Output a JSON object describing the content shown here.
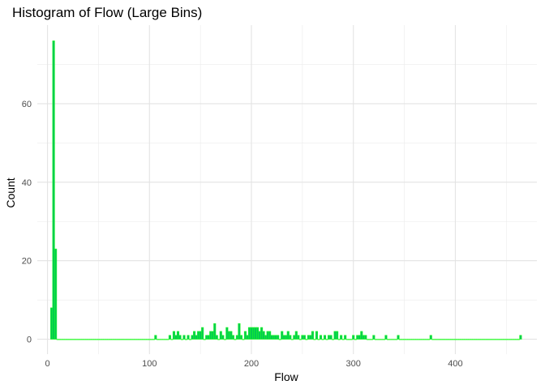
{
  "chart_data": {
    "type": "bar",
    "title": "Histogram of Flow (Large Bins)",
    "xlabel": "Flow",
    "ylabel": "Count",
    "xlim": [
      -10,
      480
    ],
    "ylim": [
      -3.8,
      80
    ],
    "x_ticks": [
      0,
      100,
      200,
      300,
      400
    ],
    "y_ticks": [
      0,
      20,
      40,
      60
    ],
    "bin_width": 2,
    "grid": true,
    "bar_color": "#00C853",
    "outline_color": "#22FF22",
    "bins": [
      [
        4,
        8
      ],
      [
        6,
        76
      ],
      [
        8,
        23
      ],
      [
        106,
        1
      ],
      [
        120,
        1
      ],
      [
        124,
        2
      ],
      [
        126,
        1
      ],
      [
        128,
        2
      ],
      [
        130,
        1
      ],
      [
        134,
        1
      ],
      [
        138,
        1
      ],
      [
        142,
        1
      ],
      [
        144,
        2
      ],
      [
        146,
        1
      ],
      [
        148,
        2
      ],
      [
        150,
        2
      ],
      [
        152,
        3
      ],
      [
        156,
        1
      ],
      [
        158,
        1
      ],
      [
        160,
        2
      ],
      [
        162,
        2
      ],
      [
        164,
        4
      ],
      [
        166,
        1
      ],
      [
        170,
        2
      ],
      [
        172,
        1
      ],
      [
        176,
        3
      ],
      [
        178,
        2
      ],
      [
        180,
        2
      ],
      [
        182,
        1
      ],
      [
        186,
        1
      ],
      [
        188,
        4
      ],
      [
        190,
        1
      ],
      [
        194,
        2
      ],
      [
        196,
        1
      ],
      [
        198,
        3
      ],
      [
        200,
        3
      ],
      [
        202,
        3
      ],
      [
        204,
        3
      ],
      [
        206,
        3
      ],
      [
        208,
        2
      ],
      [
        210,
        3
      ],
      [
        212,
        2
      ],
      [
        214,
        1
      ],
      [
        216,
        2
      ],
      [
        218,
        2
      ],
      [
        220,
        1
      ],
      [
        222,
        1
      ],
      [
        224,
        1
      ],
      [
        226,
        1
      ],
      [
        230,
        2
      ],
      [
        232,
        1
      ],
      [
        234,
        1
      ],
      [
        236,
        2
      ],
      [
        238,
        1
      ],
      [
        242,
        1
      ],
      [
        244,
        2
      ],
      [
        246,
        1
      ],
      [
        250,
        1
      ],
      [
        252,
        1
      ],
      [
        256,
        1
      ],
      [
        258,
        1
      ],
      [
        260,
        2
      ],
      [
        264,
        2
      ],
      [
        268,
        1
      ],
      [
        272,
        1
      ],
      [
        276,
        1
      ],
      [
        278,
        1
      ],
      [
        282,
        2
      ],
      [
        284,
        2
      ],
      [
        288,
        1
      ],
      [
        292,
        1
      ],
      [
        300,
        1
      ],
      [
        304,
        1
      ],
      [
        306,
        1
      ],
      [
        308,
        2
      ],
      [
        310,
        1
      ],
      [
        312,
        1
      ],
      [
        320,
        1
      ],
      [
        332,
        1
      ],
      [
        344,
        1
      ],
      [
        376,
        1
      ],
      [
        464,
        1
      ]
    ]
  }
}
